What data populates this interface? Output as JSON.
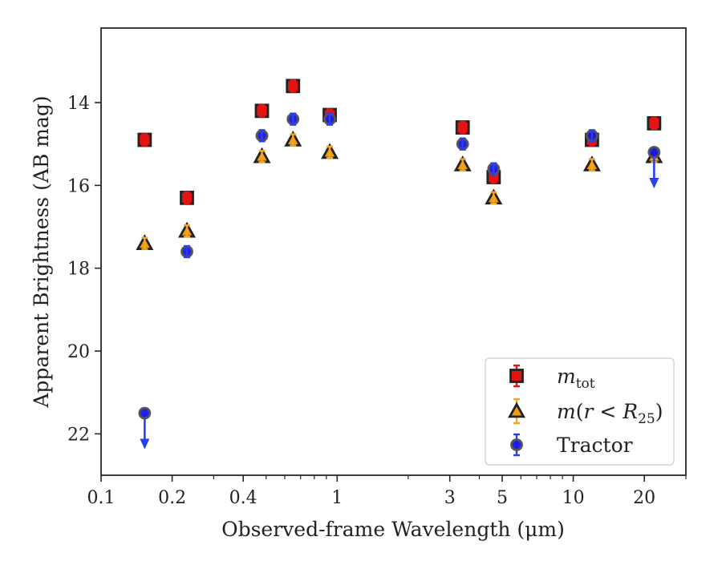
{
  "chart_data": {
    "type": "scatter",
    "xlabel": "Observed-frame Wavelength (μm)",
    "ylabel": "Apparent Brightness (AB mag)",
    "x_scale": "log",
    "xlim": [
      0.1,
      30
    ],
    "ylim": [
      23,
      12.2
    ],
    "y_inverted": true,
    "x_ticks": [
      {
        "value": 0.1,
        "label": "0.1"
      },
      {
        "value": 0.2,
        "label": "0.2"
      },
      {
        "value": 0.4,
        "label": "0.4"
      },
      {
        "value": 1,
        "label": "1"
      },
      {
        "value": 3,
        "label": "3"
      },
      {
        "value": 5,
        "label": "5"
      },
      {
        "value": 10,
        "label": "10"
      },
      {
        "value": 20,
        "label": "20"
      }
    ],
    "y_ticks": [
      {
        "value": 14,
        "label": "14"
      },
      {
        "value": 16,
        "label": "16"
      },
      {
        "value": 18,
        "label": "18"
      },
      {
        "value": 20,
        "label": "20"
      },
      {
        "value": 22,
        "label": "22"
      }
    ],
    "legend_position": "lower-right",
    "series": [
      {
        "name": "m_tot",
        "legend_label": "m_tot",
        "marker": "square",
        "color": "#e41414",
        "errorbar_color": "#e41414",
        "points": [
          {
            "x": 0.153,
            "y": 14.9
          },
          {
            "x": 0.231,
            "y": 16.3
          },
          {
            "x": 0.48,
            "y": 14.2
          },
          {
            "x": 0.65,
            "y": 13.6
          },
          {
            "x": 0.93,
            "y": 14.3
          },
          {
            "x": 3.4,
            "y": 14.6
          },
          {
            "x": 4.6,
            "y": 15.8
          },
          {
            "x": 12.0,
            "y": 14.9
          },
          {
            "x": 22.0,
            "y": 14.5
          }
        ]
      },
      {
        "name": "m(r < R25)",
        "legend_label": "m(r < R25)",
        "marker": "triangle",
        "color": "#f39c12",
        "errorbar_color": "#f5a623",
        "points": [
          {
            "x": 0.153,
            "y": 17.4
          },
          {
            "x": 0.231,
            "y": 17.1
          },
          {
            "x": 0.48,
            "y": 15.3
          },
          {
            "x": 0.65,
            "y": 14.9
          },
          {
            "x": 0.93,
            "y": 15.2
          },
          {
            "x": 3.4,
            "y": 15.5
          },
          {
            "x": 4.6,
            "y": 16.3
          },
          {
            "x": 12.0,
            "y": 15.5
          },
          {
            "x": 22.0,
            "y": 15.3
          }
        ]
      },
      {
        "name": "Tractor",
        "legend_label": "Tractor",
        "marker": "circle",
        "color": "#1515ee",
        "errorbar_color": "#2a3ff0",
        "points": [
          {
            "x": 0.153,
            "y": 21.5,
            "upper_limit": true
          },
          {
            "x": 0.231,
            "y": 17.6
          },
          {
            "x": 0.48,
            "y": 14.8
          },
          {
            "x": 0.65,
            "y": 14.4
          },
          {
            "x": 0.93,
            "y": 14.4
          },
          {
            "x": 3.4,
            "y": 15.0
          },
          {
            "x": 4.6,
            "y": 15.6
          },
          {
            "x": 12.0,
            "y": 14.8
          },
          {
            "x": 22.0,
            "y": 15.2,
            "upper_limit": true
          }
        ]
      }
    ]
  }
}
